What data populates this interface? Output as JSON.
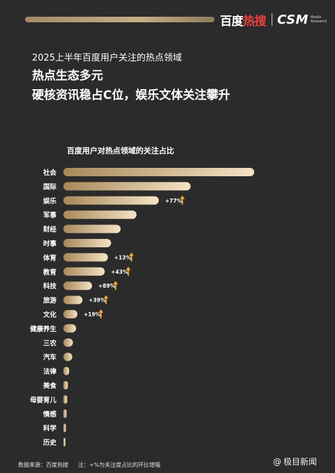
{
  "header": {
    "brand_baidu_a": "百度",
    "brand_baidu_b": "热搜",
    "brand_csm": "CSM",
    "brand_csm_sub1": "Media",
    "brand_csm_sub2": "Research"
  },
  "titles": {
    "subtitle": "2025上半年百度用户关注的热点领域",
    "headline1": "热点生态多元",
    "headline2": "硬核资讯稳占C位，娱乐文体关注攀升"
  },
  "footer": {
    "source": "数据来源：百度热搜",
    "note": "注：+%为关注度占比的环比增幅"
  },
  "watermark": "极目新闻",
  "colors": {
    "background": "#2b2b2b",
    "bar_light": "#f3e3c4",
    "bar_dark": "#a8885a",
    "arrow": "#f0a830"
  },
  "chart_data": {
    "type": "bar",
    "orientation": "horizontal",
    "title": "百度用户对热点领域的关注占比",
    "categories": [
      "社会",
      "国际",
      "娱乐",
      "军事",
      "财经",
      "时事",
      "体育",
      "教育",
      "科技",
      "旅游",
      "文化",
      "健康养生",
      "三农",
      "汽车",
      "法律",
      "美食",
      "母婴育儿",
      "情感",
      "科学",
      "历史"
    ],
    "values": [
      30,
      20,
      15,
      11.5,
      9,
      7.5,
      7,
      6.5,
      4.5,
      3,
      2.2,
      2,
      1.5,
      1.4,
      0.9,
      0.7,
      0.6,
      0.5,
      0.4,
      0.3
    ],
    "growth_labels": [
      "",
      "",
      "+77%",
      "",
      "",
      "",
      "+13%",
      "+43%",
      "+89%",
      "+39%",
      "+19%",
      "",
      "",
      "",
      "",
      "",
      "",
      "",
      "",
      ""
    ],
    "value_axis_unit": "relative share (no axis printed)",
    "grid": false
  }
}
